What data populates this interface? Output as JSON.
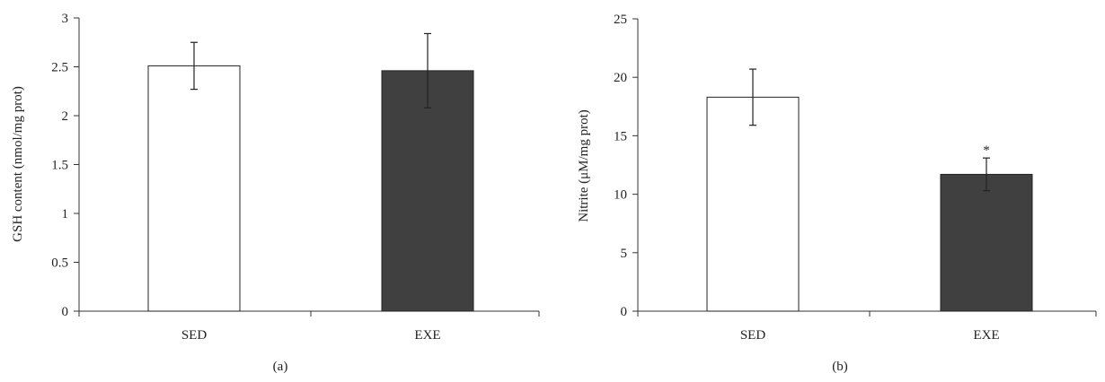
{
  "figure": {
    "panels": [
      {
        "caption": "(a)"
      },
      {
        "caption": "(b)"
      }
    ]
  },
  "colors": {
    "SED": "#ffffff",
    "EXE": "#404040",
    "outline": "#222222"
  },
  "chart_data": [
    {
      "type": "bar",
      "categories": [
        "SED",
        "EXE"
      ],
      "values": [
        2.51,
        2.46
      ],
      "error": [
        0.24,
        0.38
      ],
      "annotations": [
        "",
        ""
      ],
      "ylabel": "GSH content (nmol/mg prot)",
      "xlabel": "",
      "ylim": [
        0,
        3
      ],
      "yticks": [
        "0",
        "0.5",
        "1",
        "1.5",
        "2",
        "2.5",
        "3"
      ],
      "ytick_values": [
        0,
        0.5,
        1,
        1.5,
        2,
        2.5,
        3
      ],
      "grid": false,
      "legend": "none"
    },
    {
      "type": "bar",
      "categories": [
        "SED",
        "EXE"
      ],
      "values": [
        18.3,
        11.7
      ],
      "error": [
        2.4,
        1.4
      ],
      "annotations": [
        "",
        "*"
      ],
      "ylabel": "Nitrite (μM/mg prot)",
      "xlabel": "",
      "ylim": [
        0,
        25
      ],
      "yticks": [
        "0",
        "5",
        "10",
        "15",
        "20",
        "25"
      ],
      "ytick_values": [
        0,
        5,
        10,
        15,
        20,
        25
      ],
      "grid": false,
      "legend": "none"
    }
  ]
}
